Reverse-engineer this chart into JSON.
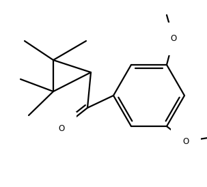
{
  "bg_color": "#ffffff",
  "line_color": "#000000",
  "line_width": 1.6,
  "font_size": 8.5,
  "figsize": [
    3.03,
    2.74
  ],
  "dpi": 100,
  "xlim": [
    0,
    303
  ],
  "ylim": [
    0,
    274
  ]
}
